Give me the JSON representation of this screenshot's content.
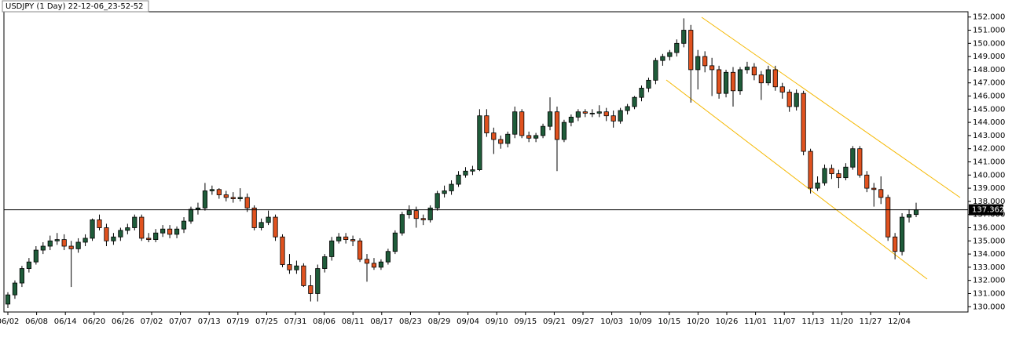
{
  "chart_data": {
    "type": "candlestick",
    "title": "USDJPY (1 Day) 22-12-06_23-52-52",
    "bull_color": "#1f5c3a",
    "bear_color": "#e0521f",
    "ylim": [
      129.6,
      152.4
    ],
    "yticks": [
      {
        "value": 130,
        "label": "130.000"
      },
      {
        "value": 131,
        "label": "131.000"
      },
      {
        "value": 132,
        "label": "132.000"
      },
      {
        "value": 133,
        "label": "133.000"
      },
      {
        "value": 134,
        "label": "134.000"
      },
      {
        "value": 135,
        "label": "135.000"
      },
      {
        "value": 136,
        "label": "136.000"
      },
      {
        "value": 137,
        "label": "137.000"
      },
      {
        "value": 138,
        "label": "138.000"
      },
      {
        "value": 139,
        "label": "139.000"
      },
      {
        "value": 140,
        "label": "140.000"
      },
      {
        "value": 141,
        "label": "141.000"
      },
      {
        "value": 142,
        "label": "142.000"
      },
      {
        "value": 143,
        "label": "143.000"
      },
      {
        "value": 144,
        "label": "144.000"
      },
      {
        "value": 145,
        "label": "145.000"
      },
      {
        "value": 146,
        "label": "146.000"
      },
      {
        "value": 147,
        "label": "147.000"
      },
      {
        "value": 148,
        "label": "148.000"
      },
      {
        "value": 149,
        "label": "149.000"
      },
      {
        "value": 150,
        "label": "150.000"
      },
      {
        "value": 151,
        "label": "151.000"
      },
      {
        "value": 152,
        "label": "152.000"
      }
    ],
    "current_price": 137.362,
    "x_labels": [
      "06/02",
      "06/08",
      "06/14",
      "06/20",
      "06/26",
      "07/02",
      "07/07",
      "07/13",
      "07/19",
      "07/25",
      "07/31",
      "08/06",
      "08/11",
      "08/17",
      "08/23",
      "08/29",
      "09/04",
      "09/10",
      "09/15",
      "09/21",
      "09/27",
      "10/03",
      "10/09",
      "10/15",
      "10/20",
      "10/26",
      "11/01",
      "11/07",
      "11/13",
      "11/20",
      "11/27",
      "12/04"
    ],
    "candles": [
      [
        130.2,
        131.1,
        129.9,
        130.9
      ],
      [
        130.9,
        132.0,
        130.6,
        131.8
      ],
      [
        131.8,
        133.1,
        131.5,
        132.9
      ],
      [
        132.9,
        133.7,
        132.6,
        133.4
      ],
      [
        133.4,
        134.6,
        133.2,
        134.3
      ],
      [
        134.3,
        134.9,
        134.0,
        134.6
      ],
      [
        134.6,
        135.4,
        134.3,
        135.0
      ],
      [
        135.0,
        135.6,
        134.7,
        135.1
      ],
      [
        135.1,
        135.5,
        134.3,
        134.6
      ],
      [
        134.6,
        135.0,
        131.5,
        134.4
      ],
      [
        134.4,
        135.2,
        134.1,
        134.9
      ],
      [
        134.9,
        135.5,
        134.6,
        135.2
      ],
      [
        135.2,
        136.7,
        135.0,
        136.6
      ],
      [
        136.6,
        137.0,
        135.8,
        136.0
      ],
      [
        136.0,
        136.3,
        134.6,
        135.0
      ],
      [
        135.0,
        135.6,
        134.7,
        135.3
      ],
      [
        135.3,
        136.0,
        135.0,
        135.8
      ],
      [
        135.8,
        136.3,
        135.5,
        136.0
      ],
      [
        136.0,
        137.0,
        135.8,
        136.8
      ],
      [
        136.8,
        137.0,
        135.0,
        135.2
      ],
      [
        135.2,
        135.6,
        134.9,
        135.1
      ],
      [
        135.1,
        135.9,
        134.9,
        135.6
      ],
      [
        135.6,
        136.2,
        135.3,
        135.9
      ],
      [
        135.9,
        136.2,
        135.2,
        135.5
      ],
      [
        135.5,
        136.1,
        135.2,
        135.9
      ],
      [
        135.9,
        136.8,
        135.6,
        136.5
      ],
      [
        136.5,
        137.6,
        136.3,
        137.4
      ],
      [
        137.4,
        137.9,
        137.0,
        137.5
      ],
      [
        137.5,
        139.4,
        137.3,
        138.8
      ],
      [
        138.8,
        139.2,
        138.5,
        138.9
      ],
      [
        138.9,
        139.0,
        138.2,
        138.5
      ],
      [
        138.5,
        138.8,
        138.0,
        138.3
      ],
      [
        138.3,
        138.7,
        137.9,
        138.2
      ],
      [
        138.2,
        139.0,
        138.0,
        138.3
      ],
      [
        138.3,
        138.6,
        137.2,
        137.5
      ],
      [
        137.5,
        137.7,
        135.8,
        136.0
      ],
      [
        136.0,
        136.7,
        135.8,
        136.4
      ],
      [
        136.4,
        137.3,
        136.2,
        136.8
      ],
      [
        136.8,
        137.0,
        135.0,
        135.3
      ],
      [
        135.3,
        135.5,
        133.0,
        133.2
      ],
      [
        133.2,
        134.0,
        132.5,
        132.8
      ],
      [
        132.8,
        133.5,
        132.5,
        133.1
      ],
      [
        133.1,
        133.3,
        131.5,
        131.6
      ],
      [
        131.6,
        132.4,
        130.4,
        131.0
      ],
      [
        131.0,
        133.2,
        130.4,
        132.9
      ],
      [
        132.9,
        134.0,
        132.6,
        133.8
      ],
      [
        133.8,
        135.3,
        133.5,
        135.0
      ],
      [
        135.0,
        135.6,
        134.8,
        135.3
      ],
      [
        135.3,
        135.6,
        134.8,
        135.1
      ],
      [
        135.1,
        135.4,
        134.6,
        135.0
      ],
      [
        135.0,
        135.2,
        133.4,
        133.6
      ],
      [
        133.6,
        134.0,
        131.9,
        133.3
      ],
      [
        133.3,
        133.7,
        132.8,
        133.0
      ],
      [
        133.0,
        133.6,
        132.8,
        133.4
      ],
      [
        133.4,
        134.4,
        133.2,
        134.2
      ],
      [
        134.2,
        135.8,
        134.0,
        135.6
      ],
      [
        135.6,
        137.2,
        135.4,
        137.0
      ],
      [
        137.0,
        137.7,
        136.7,
        137.3
      ],
      [
        137.3,
        137.6,
        136.0,
        136.7
      ],
      [
        136.7,
        137.0,
        136.2,
        136.6
      ],
      [
        136.6,
        137.7,
        136.4,
        137.5
      ],
      [
        137.5,
        138.8,
        137.3,
        138.6
      ],
      [
        138.6,
        139.2,
        138.3,
        138.8
      ],
      [
        138.8,
        139.6,
        138.5,
        139.3
      ],
      [
        139.3,
        140.3,
        139.1,
        140.0
      ],
      [
        140.0,
        140.6,
        139.8,
        140.3
      ],
      [
        140.3,
        140.7,
        140.0,
        140.4
      ],
      [
        140.4,
        145.0,
        140.3,
        144.5
      ],
      [
        144.5,
        145.0,
        142.9,
        143.2
      ],
      [
        143.2,
        143.6,
        141.6,
        142.7
      ],
      [
        142.7,
        143.0,
        142.0,
        142.4
      ],
      [
        142.4,
        143.3,
        142.1,
        143.1
      ],
      [
        143.1,
        145.2,
        142.8,
        144.8
      ],
      [
        144.8,
        145.0,
        142.8,
        143.0
      ],
      [
        143.0,
        143.3,
        142.5,
        142.8
      ],
      [
        142.8,
        143.2,
        142.5,
        143.0
      ],
      [
        143.0,
        143.9,
        142.8,
        143.7
      ],
      [
        143.7,
        145.9,
        143.4,
        144.8
      ],
      [
        144.8,
        145.2,
        140.3,
        142.7
      ],
      [
        142.7,
        144.2,
        142.5,
        144.0
      ],
      [
        144.0,
        144.6,
        143.7,
        144.4
      ],
      [
        144.4,
        145.0,
        144.1,
        144.8
      ],
      [
        144.8,
        145.0,
        144.4,
        144.7
      ],
      [
        144.7,
        145.0,
        144.4,
        144.7
      ],
      [
        144.7,
        145.3,
        144.4,
        144.8
      ],
      [
        144.8,
        145.1,
        144.1,
        144.5
      ],
      [
        144.5,
        144.9,
        143.6,
        144.1
      ],
      [
        144.1,
        145.1,
        143.9,
        144.9
      ],
      [
        144.9,
        145.4,
        144.6,
        145.2
      ],
      [
        145.2,
        146.0,
        145.0,
        145.9
      ],
      [
        145.9,
        146.8,
        145.6,
        146.6
      ],
      [
        146.6,
        147.4,
        146.3,
        147.2
      ],
      [
        147.2,
        148.9,
        146.9,
        148.7
      ],
      [
        148.7,
        149.2,
        148.3,
        149.0
      ],
      [
        149.0,
        149.5,
        148.7,
        149.3
      ],
      [
        149.3,
        150.3,
        149.0,
        150.0
      ],
      [
        150.0,
        151.9,
        149.7,
        151.0
      ],
      [
        151.0,
        151.4,
        145.5,
        148.0
      ],
      [
        148.0,
        149.5,
        146.5,
        149.0
      ],
      [
        149.0,
        149.4,
        147.8,
        148.3
      ],
      [
        148.3,
        148.9,
        146.0,
        148.0
      ],
      [
        148.0,
        148.3,
        145.8,
        146.2
      ],
      [
        146.2,
        148.0,
        145.9,
        147.8
      ],
      [
        147.8,
        148.2,
        145.2,
        146.4
      ],
      [
        146.4,
        148.2,
        146.1,
        148.0
      ],
      [
        148.0,
        148.6,
        147.7,
        148.2
      ],
      [
        148.2,
        148.5,
        147.2,
        147.6
      ],
      [
        147.6,
        147.9,
        145.7,
        147.0
      ],
      [
        147.0,
        148.3,
        146.8,
        148.0
      ],
      [
        148.0,
        148.3,
        146.4,
        146.7
      ],
      [
        146.7,
        147.0,
        145.8,
        146.3
      ],
      [
        146.3,
        146.5,
        144.8,
        145.2
      ],
      [
        145.2,
        146.5,
        144.9,
        146.2
      ],
      [
        146.2,
        146.4,
        141.5,
        141.8
      ],
      [
        141.8,
        142.0,
        138.6,
        139.0
      ],
      [
        139.0,
        139.9,
        138.8,
        139.4
      ],
      [
        139.4,
        140.8,
        139.2,
        140.5
      ],
      [
        140.5,
        140.8,
        139.7,
        140.1
      ],
      [
        140.1,
        140.4,
        139.0,
        139.8
      ],
      [
        139.8,
        140.9,
        139.6,
        140.6
      ],
      [
        140.6,
        142.2,
        140.4,
        142.0
      ],
      [
        142.0,
        142.2,
        139.8,
        140.0
      ],
      [
        140.0,
        140.3,
        138.7,
        139.0
      ],
      [
        139.0,
        139.4,
        137.6,
        138.9
      ],
      [
        138.9,
        139.9,
        137.8,
        138.3
      ],
      [
        138.3,
        138.5,
        135.0,
        135.3
      ],
      [
        135.3,
        135.6,
        133.6,
        134.2
      ],
      [
        134.2,
        137.1,
        133.9,
        136.8
      ],
      [
        136.8,
        137.4,
        136.4,
        137.0
      ],
      [
        137.0,
        137.9,
        136.8,
        137.36
      ]
    ]
  }
}
